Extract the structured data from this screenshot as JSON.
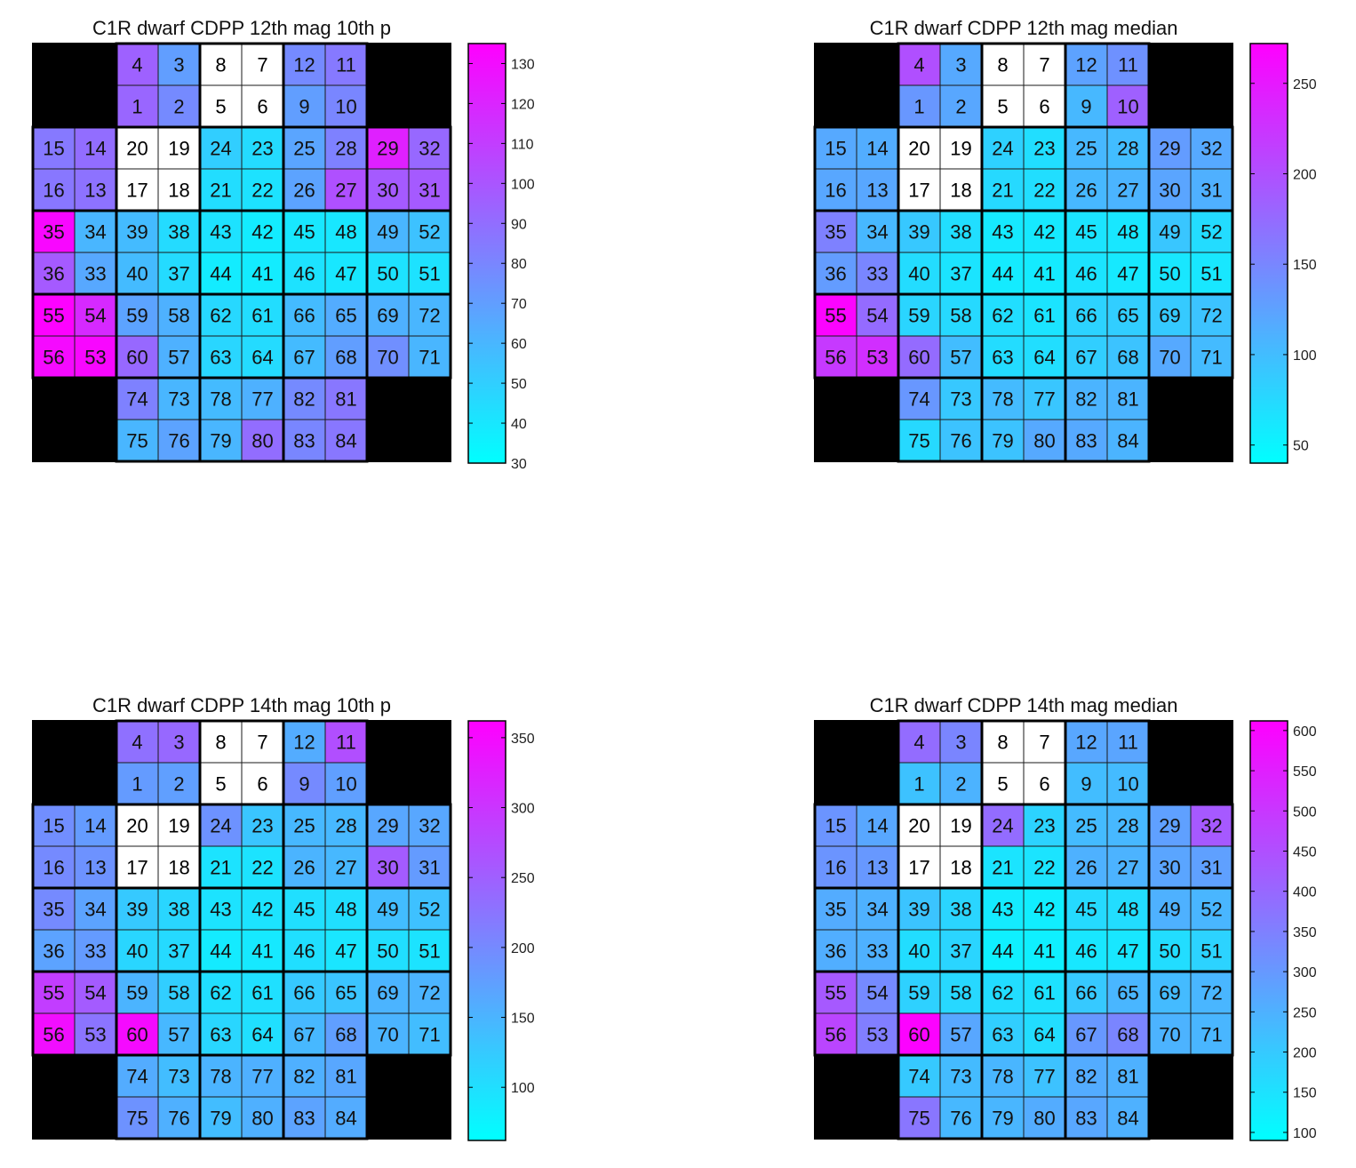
{
  "chart_data": [
    {
      "type": "heatmap",
      "title": "C1R dwarf  CDPP 12th mag 10th p",
      "colorbar": {
        "range": [
          30,
          135
        ],
        "ticks": [
          30,
          40,
          50,
          60,
          70,
          80,
          90,
          100,
          110,
          120,
          130
        ],
        "colormap": [
          "#00ffff",
          "#ff00ff"
        ]
      },
      "values": {
        "1": 93,
        "2": 78,
        "3": 70,
        "4": 95,
        "5": null,
        "6": null,
        "7": null,
        "8": null,
        "9": 70,
        "10": 80,
        "11": 85,
        "12": 78,
        "13": 88,
        "14": 90,
        "15": 85,
        "16": 86,
        "17": null,
        "18": null,
        "19": null,
        "20": null,
        "21": 44,
        "22": 42,
        "23": 45,
        "24": 50,
        "25": 67,
        "26": 68,
        "27": 102,
        "28": 82,
        "29": 122,
        "30": 98,
        "31": 98,
        "32": 92,
        "33": 66,
        "34": 60,
        "35": 132,
        "36": 98,
        "37": 45,
        "38": 45,
        "39": 58,
        "40": 58,
        "41": 38,
        "42": 38,
        "43": 42,
        "44": 38,
        "45": 40,
        "46": 42,
        "47": 40,
        "48": 40,
        "49": 60,
        "50": 42,
        "51": 42,
        "52": 55,
        "53": 132,
        "54": 118,
        "55": 134,
        "56": 131,
        "57": 62,
        "58": 62,
        "59": 68,
        "60": 92,
        "61": 44,
        "62": 46,
        "63": 47,
        "64": 45,
        "65": 64,
        "66": 58,
        "67": 58,
        "68": 70,
        "69": 62,
        "70": 76,
        "71": 60,
        "72": 60,
        "73": 60,
        "74": 82,
        "75": 60,
        "76": 68,
        "77": 62,
        "78": 58,
        "79": 60,
        "80": 90,
        "81": 86,
        "82": 78,
        "83": 80,
        "84": 86
      }
    },
    {
      "type": "heatmap",
      "title": "C1R dwarf  CDPP 12th mag median",
      "colorbar": {
        "range": [
          40,
          272
        ],
        "ticks": [
          50,
          100,
          150,
          200,
          250
        ],
        "colormap": [
          "#00ffff",
          "#ff00ff"
        ]
      },
      "values": {
        "1": 135,
        "2": 120,
        "3": 118,
        "4": 200,
        "5": null,
        "6": null,
        "7": null,
        "8": null,
        "9": 105,
        "10": 185,
        "11": 140,
        "12": 125,
        "13": 120,
        "14": 115,
        "15": 118,
        "16": 120,
        "17": null,
        "18": null,
        "19": null,
        "20": null,
        "21": 75,
        "22": 70,
        "23": 70,
        "24": 82,
        "25": 105,
        "26": 105,
        "27": 108,
        "28": 100,
        "29": 130,
        "30": 122,
        "31": 112,
        "32": 118,
        "33": 150,
        "34": 105,
        "35": 155,
        "36": 130,
        "37": 65,
        "38": 70,
        "39": 90,
        "40": 72,
        "41": 58,
        "42": 60,
        "43": 60,
        "44": 58,
        "45": 65,
        "46": 65,
        "47": 60,
        "48": 62,
        "49": 92,
        "50": 62,
        "51": 62,
        "52": 72,
        "53": 230,
        "54": 175,
        "55": 268,
        "56": 220,
        "57": 100,
        "58": 75,
        "59": 78,
        "60": 175,
        "61": 65,
        "62": 70,
        "63": 72,
        "64": 70,
        "65": 85,
        "66": 80,
        "67": 85,
        "68": 95,
        "69": 88,
        "70": 118,
        "71": 102,
        "72": 95,
        "73": 90,
        "74": 135,
        "75": 75,
        "76": 95,
        "77": 92,
        "78": 102,
        "79": 95,
        "80": 118,
        "81": 108,
        "82": 108,
        "83": 118,
        "84": 108
      }
    },
    {
      "type": "heatmap",
      "title": "C1R dwarf  CDPP 14th mag 10th p",
      "colorbar": {
        "range": [
          62,
          362
        ],
        "ticks": [
          100,
          150,
          200,
          250,
          300,
          350
        ],
        "colormap": [
          "#00ffff",
          "#ff00ff"
        ]
      },
      "values": {
        "1": 180,
        "2": 175,
        "3": 240,
        "4": 230,
        "5": null,
        "6": null,
        "7": null,
        "8": null,
        "9": 200,
        "10": 175,
        "11": 270,
        "12": 160,
        "13": 190,
        "14": 180,
        "15": 195,
        "16": 200,
        "17": null,
        "18": null,
        "19": null,
        "20": null,
        "21": 95,
        "22": 95,
        "23": 130,
        "24": 190,
        "25": 145,
        "26": 150,
        "27": 145,
        "28": 145,
        "29": 165,
        "30": 255,
        "31": 180,
        "32": 165,
        "33": 180,
        "34": 170,
        "35": 200,
        "36": 170,
        "37": 105,
        "38": 110,
        "39": 125,
        "40": 110,
        "41": 88,
        "42": 95,
        "43": 95,
        "44": 85,
        "45": 100,
        "46": 100,
        "47": 92,
        "48": 100,
        "49": 140,
        "50": 100,
        "51": 95,
        "52": 135,
        "53": 225,
        "54": 255,
        "55": 290,
        "56": 345,
        "57": 145,
        "58": 120,
        "59": 150,
        "60": 350,
        "61": 98,
        "62": 100,
        "63": 110,
        "64": 100,
        "65": 130,
        "66": 125,
        "67": 145,
        "68": 175,
        "69": 150,
        "70": 150,
        "71": 140,
        "72": 150,
        "73": 140,
        "74": 160,
        "75": 190,
        "76": 155,
        "77": 155,
        "78": 150,
        "79": 140,
        "80": 155,
        "81": 165,
        "82": 155,
        "83": 170,
        "84": 160
      }
    },
    {
      "type": "heatmap",
      "title": "C1R dwarf  CDPP 14th mag median",
      "colorbar": {
        "range": [
          90,
          612
        ],
        "ticks": [
          100,
          150,
          200,
          250,
          300,
          350,
          400,
          450,
          500,
          550,
          600
        ],
        "colormap": [
          "#00ffff",
          "#ff00ff"
        ]
      },
      "values": {
        "1": 215,
        "2": 245,
        "3": 340,
        "4": 390,
        "5": null,
        "6": null,
        "7": null,
        "8": null,
        "9": 225,
        "10": 230,
        "11": 275,
        "12": 270,
        "13": 300,
        "14": 270,
        "15": 310,
        "16": 310,
        "17": null,
        "18": null,
        "19": null,
        "20": null,
        "21": 145,
        "22": 145,
        "23": 180,
        "24": 390,
        "25": 230,
        "26": 250,
        "27": 245,
        "28": 235,
        "29": 285,
        "30": 275,
        "31": 285,
        "32": 430,
        "33": 250,
        "34": 250,
        "35": 260,
        "36": 255,
        "37": 175,
        "38": 175,
        "39": 210,
        "40": 160,
        "41": 120,
        "42": 125,
        "43": 130,
        "44": 120,
        "45": 165,
        "46": 140,
        "47": 140,
        "48": 160,
        "49": 250,
        "50": 160,
        "51": 180,
        "52": 240,
        "53": 355,
        "54": 330,
        "55": 430,
        "56": 470,
        "57": 270,
        "58": 170,
        "59": 185,
        "60": 605,
        "61": 150,
        "62": 160,
        "63": 190,
        "64": 160,
        "65": 240,
        "66": 200,
        "67": 300,
        "68": 340,
        "69": 230,
        "70": 245,
        "71": 240,
        "72": 240,
        "73": 230,
        "74": 200,
        "75": 370,
        "76": 235,
        "77": 215,
        "78": 240,
        "79": 240,
        "80": 260,
        "81": 250,
        "82": 260,
        "83": 270,
        "84": 250
      }
    }
  ]
}
